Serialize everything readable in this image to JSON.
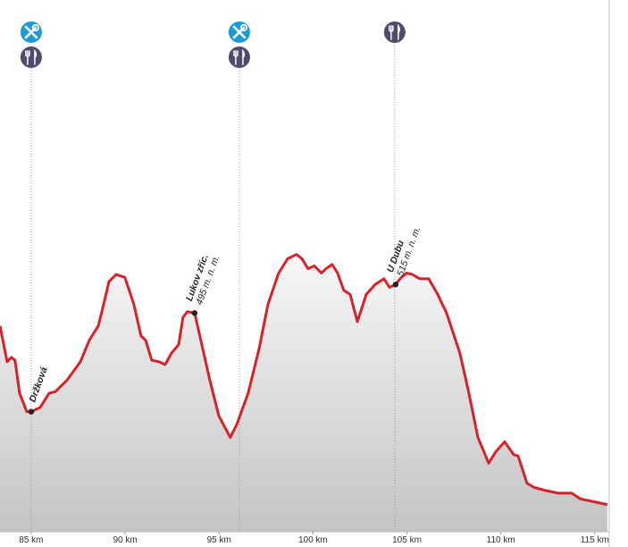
{
  "chart_data": {
    "type": "area",
    "color": "#d7222a",
    "x": [
      83.34,
      83.72,
      83.95,
      84.14,
      84.38,
      84.76,
      85.0,
      85.48,
      85.95,
      86.28,
      86.9,
      87.62,
      88.09,
      88.57,
      88.8,
      89.14,
      89.52,
      89.99,
      90.47,
      90.85,
      91.09,
      91.42,
      91.8,
      92.13,
      92.47,
      92.85,
      93.08,
      93.32,
      93.7,
      94.03,
      94.51,
      94.99,
      95.6,
      95.94,
      96.55,
      97.13,
      97.6,
      98.17,
      98.65,
      99.12,
      99.41,
      99.74,
      100.07,
      100.45,
      100.69,
      101.02,
      101.31,
      101.64,
      101.98,
      102.36,
      102.59,
      102.83,
      103.31,
      103.78,
      104.07,
      104.4,
      104.64,
      104.97,
      105.3,
      105.68,
      106.16,
      106.64,
      107.11,
      107.82,
      108.3,
      108.78,
      109.35,
      109.73,
      110.2,
      110.68,
      110.92,
      111.39,
      111.77,
      112.34,
      113.06,
      113.77,
      114.24,
      114.96,
      115.67
    ],
    "values": [
      486,
      461,
      464,
      462,
      439,
      426,
      426,
      429,
      439,
      440,
      448,
      461,
      476,
      486,
      498,
      517,
      522,
      520,
      501,
      479,
      476,
      462,
      461,
      459,
      467,
      473,
      492,
      496,
      495,
      476,
      448,
      423,
      408,
      417,
      439,
      470,
      501,
      523,
      533,
      536,
      533,
      526,
      528,
      523,
      526,
      529,
      523,
      511,
      508,
      489,
      498,
      508,
      515,
      519,
      513,
      515,
      519,
      523,
      522,
      519,
      519,
      508,
      495,
      467,
      439,
      408,
      390,
      398,
      405,
      396,
      395,
      376,
      373,
      371,
      369,
      369,
      365,
      363,
      361
    ],
    "xlim": [
      83.34,
      115.77
    ],
    "ylim": [
      342,
      714
    ],
    "xticks": [
      {
        "value": 85,
        "label": "85 km"
      },
      {
        "value": 90,
        "label": "90 km"
      },
      {
        "value": 95,
        "label": "95 km"
      },
      {
        "value": 100,
        "label": "100 km"
      },
      {
        "value": 105,
        "label": "105 km"
      },
      {
        "value": 110,
        "label": "110 km"
      },
      {
        "value": 115,
        "label": "115 km"
      }
    ],
    "markers": [
      {
        "label": "Držková",
        "x": 85.0,
        "y": 426
      },
      {
        "label": "Lukov zříc.",
        "x": 93.7,
        "y": 495,
        "y_label": "495 m. n. m."
      },
      {
        "label": "U Dubu",
        "x": 104.4,
        "y": 515,
        "y_label": "515 m. n. m."
      }
    ],
    "amenities": [
      {
        "x": 85.0,
        "icons": [
          "service",
          "food"
        ]
      },
      {
        "x": 96.08,
        "icons": [
          "service",
          "food"
        ]
      },
      {
        "x": 104.35,
        "icons": [
          "food"
        ]
      }
    ]
  }
}
